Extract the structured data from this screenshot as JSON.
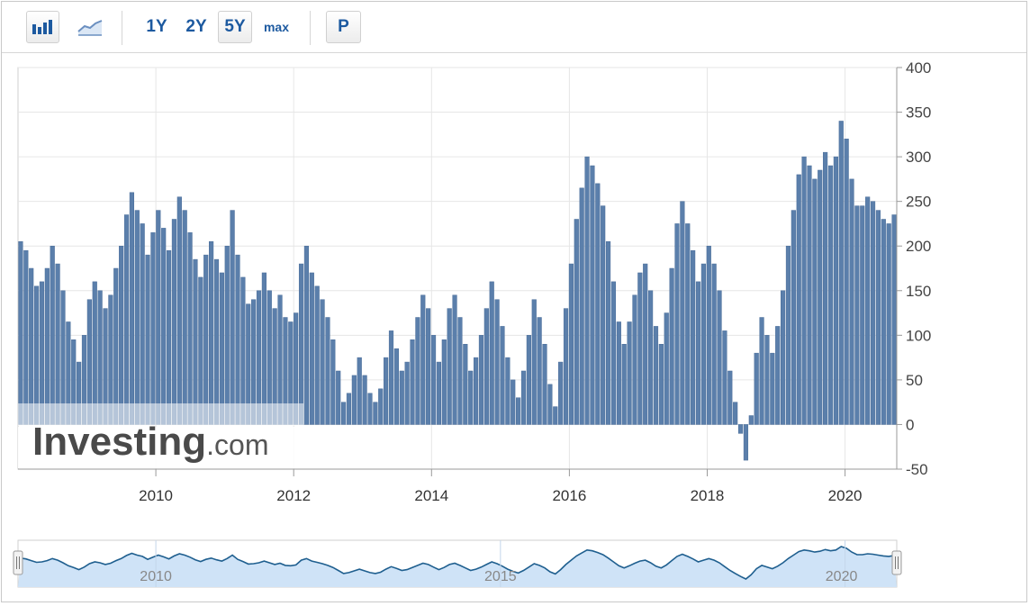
{
  "toolbar": {
    "range_1y": "1Y",
    "range_2y": "2Y",
    "range_5y": "5Y",
    "range_max": "max",
    "p_label": "P",
    "bar_chart_icon": "bar-chart-icon",
    "line_chart_icon": "line-chart-icon"
  },
  "watermark": {
    "brand": "Investing",
    "suffix": ".com"
  },
  "navigator": {
    "labels": [
      "2010",
      "2015",
      "2020"
    ],
    "handle_icon": "drag-handle-icon"
  },
  "colors": {
    "bar": "#5b7fab",
    "bar_stroke": "#4a6d99",
    "grid": "#e6e6e6",
    "navigator_fill": "#cfe3f7",
    "navigator_line": "#1f5f8f",
    "link": "#1d5aa0"
  },
  "chart_data": {
    "type": "bar",
    "title": "",
    "xlabel": "",
    "ylabel": "",
    "x_ticks": [
      "2010",
      "2012",
      "2014",
      "2016",
      "2018",
      "2020"
    ],
    "y_ticks": [
      400,
      350,
      300,
      250,
      200,
      150,
      100,
      50,
      0,
      -50
    ],
    "ylim": [
      -50,
      400
    ],
    "xlim": [
      "2008-01",
      "2020-09"
    ],
    "grid": true,
    "y_axis_side": "right",
    "frequency": "monthly",
    "start": "2008-01",
    "values": [
      205,
      195,
      175,
      155,
      160,
      175,
      200,
      180,
      150,
      115,
      95,
      70,
      100,
      140,
      160,
      150,
      130,
      145,
      175,
      200,
      235,
      260,
      240,
      225,
      190,
      215,
      240,
      220,
      195,
      230,
      255,
      240,
      215,
      185,
      165,
      190,
      205,
      185,
      170,
      200,
      240,
      190,
      165,
      135,
      140,
      150,
      170,
      150,
      130,
      145,
      120,
      115,
      125,
      180,
      200,
      170,
      155,
      140,
      120,
      95,
      60,
      25,
      35,
      55,
      75,
      55,
      35,
      25,
      40,
      75,
      105,
      85,
      60,
      70,
      95,
      120,
      145,
      130,
      100,
      70,
      95,
      130,
      145,
      120,
      90,
      60,
      75,
      100,
      130,
      160,
      140,
      110,
      75,
      50,
      30,
      60,
      100,
      140,
      120,
      90,
      45,
      20,
      70,
      130,
      180,
      230,
      265,
      300,
      290,
      270,
      245,
      205,
      160,
      115,
      90,
      115,
      145,
      170,
      180,
      150,
      110,
      90,
      125,
      175,
      225,
      250,
      225,
      195,
      160,
      180,
      200,
      180,
      150,
      105,
      60,
      25,
      -10,
      -40,
      10,
      80,
      120,
      100,
      80,
      110,
      150,
      200,
      240,
      280,
      300,
      290,
      275,
      285,
      305,
      290,
      300,
      340,
      320,
      275,
      245,
      245,
      255,
      250,
      240,
      230,
      225,
      235
    ]
  }
}
